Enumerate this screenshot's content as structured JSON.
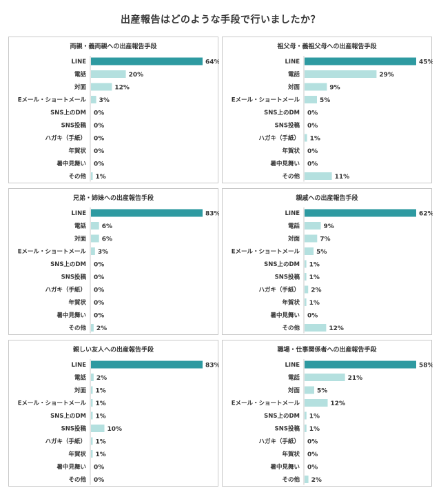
{
  "title": "出産報告はどのような手段で行いましたか？",
  "colors": {
    "primary": "#2e9aa1",
    "secondary": "#b4e0df",
    "border": "#c8c8c8"
  },
  "chart_data": [
    {
      "type": "bar",
      "title": "両親・義両親への出産報告手段",
      "categories": [
        "LINE",
        "電話",
        "対面",
        "Eメール・ショートメール",
        "SNS上のDM",
        "SNS投稿",
        "ハガキ（手紙）",
        "年賀状",
        "暑中見舞い",
        "その他"
      ],
      "values": [
        64,
        20,
        12,
        3,
        0,
        0,
        0,
        0,
        0,
        1
      ],
      "value_labels": [
        "64%",
        "20%",
        "12%",
        "3%",
        "0%",
        "0%",
        "0%",
        "0%",
        "0%",
        "1%"
      ],
      "xlim": [
        0,
        64
      ]
    },
    {
      "type": "bar",
      "title": "祖父母・義祖父母への出産報告手段",
      "categories": [
        "LINE",
        "電話",
        "対面",
        "Eメール・ショートメール",
        "SNS上のDM",
        "SNS投稿",
        "ハガキ（手紙）",
        "年賀状",
        "暑中見舞い",
        "その他"
      ],
      "values": [
        45,
        29,
        9,
        5,
        0,
        0,
        1,
        0,
        0,
        11
      ],
      "value_labels": [
        "45%",
        "29%",
        "9%",
        "5%",
        "0%",
        "0%",
        "1%",
        "0%",
        "0%",
        "11%"
      ],
      "xlim": [
        0,
        45
      ]
    },
    {
      "type": "bar",
      "title": "兄弟・姉妹への出産報告手段",
      "categories": [
        "LINE",
        "電話",
        "対面",
        "Eメール・ショートメール",
        "SNS上のDM",
        "SNS投稿",
        "ハガキ（手紙）",
        "年賀状",
        "暑中見舞い",
        "その他"
      ],
      "values": [
        83,
        6,
        6,
        3,
        0,
        0,
        0,
        0,
        0,
        2
      ],
      "value_labels": [
        "83%",
        "6%",
        "6%",
        "3%",
        "0%",
        "0%",
        "0%",
        "0%",
        "0%",
        "2%"
      ],
      "xlim": [
        0,
        83
      ]
    },
    {
      "type": "bar",
      "title": "親戚への出産報告手段",
      "categories": [
        "LINE",
        "電話",
        "対面",
        "Eメール・ショートメール",
        "SNS上のDM",
        "SNS投稿",
        "ハガキ（手紙）",
        "年賀状",
        "暑中見舞い",
        "その他"
      ],
      "values": [
        62,
        9,
        7,
        5,
        1,
        1,
        2,
        1,
        0,
        12
      ],
      "value_labels": [
        "62%",
        "9%",
        "7%",
        "5%",
        "1%",
        "1%",
        "2%",
        "1%",
        "0%",
        "12%"
      ],
      "xlim": [
        0,
        62
      ]
    },
    {
      "type": "bar",
      "title": "親しい友人への出産報告手段",
      "categories": [
        "LINE",
        "電話",
        "対面",
        "Eメール・ショートメール",
        "SNS上のDM",
        "SNS投稿",
        "ハガキ（手紙）",
        "年賀状",
        "暑中見舞い",
        "その他"
      ],
      "values": [
        83,
        2,
        1,
        1,
        1,
        10,
        1,
        1,
        0,
        0
      ],
      "value_labels": [
        "83%",
        "2%",
        "1%",
        "1%",
        "1%",
        "10%",
        "1%",
        "1%",
        "0%",
        "0%"
      ],
      "xlim": [
        0,
        83
      ]
    },
    {
      "type": "bar",
      "title": "職場・仕事関係者への出産報告手段",
      "categories": [
        "LINE",
        "電話",
        "対面",
        "Eメール・ショートメール",
        "SNS上のDM",
        "SNS投稿",
        "ハガキ（手紙）",
        "年賀状",
        "暑中見舞い",
        "その他"
      ],
      "values": [
        58,
        21,
        5,
        12,
        1,
        1,
        0,
        0,
        0,
        2
      ],
      "value_labels": [
        "58%",
        "21%",
        "5%",
        "12%",
        "1%",
        "1%",
        "0%",
        "0%",
        "0%",
        "2%"
      ],
      "xlim": [
        0,
        58
      ]
    }
  ]
}
